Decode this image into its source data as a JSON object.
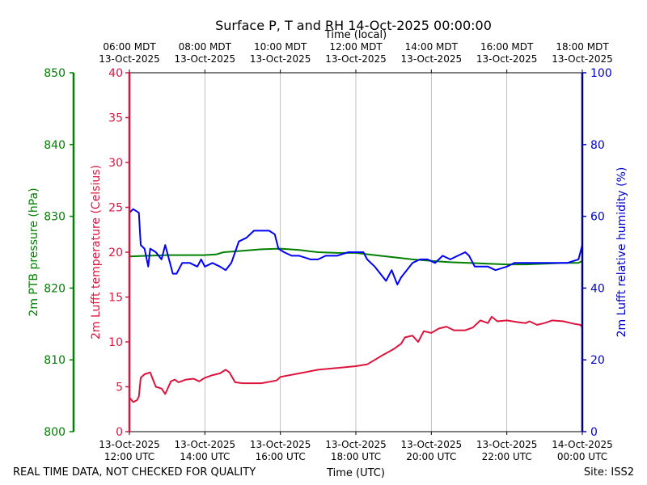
{
  "chart_data": {
    "type": "line",
    "title": "Surface P, T and RH 14-Oct-2025 00:00:00",
    "top_axis_label": "Time (local)",
    "xlabel": "Time (UTC)",
    "footer_left": "REAL TIME DATA, NOT CHECKED FOR QUALITY",
    "footer_right": "Site: ISS2",
    "x_unit": "hours UTC on 13-Oct-2025",
    "xlim": [
      12,
      24
    ],
    "bottom_ticks": [
      {
        "x": 12,
        "line1": "13-Oct-2025",
        "line2": "12:00 UTC"
      },
      {
        "x": 14,
        "line1": "13-Oct-2025",
        "line2": "14:00 UTC"
      },
      {
        "x": 16,
        "line1": "13-Oct-2025",
        "line2": "16:00 UTC"
      },
      {
        "x": 18,
        "line1": "13-Oct-2025",
        "line2": "18:00 UTC"
      },
      {
        "x": 20,
        "line1": "13-Oct-2025",
        "line2": "20:00 UTC"
      },
      {
        "x": 22,
        "line1": "13-Oct-2025",
        "line2": "22:00 UTC"
      },
      {
        "x": 24,
        "line1": "14-Oct-2025",
        "line2": "00:00 UTC"
      }
    ],
    "top_ticks": [
      {
        "x": 12,
        "line1": "06:00 MDT",
        "line2": "13-Oct-2025"
      },
      {
        "x": 14,
        "line1": "08:00 MDT",
        "line2": "13-Oct-2025"
      },
      {
        "x": 16,
        "line1": "10:00 MDT",
        "line2": "13-Oct-2025"
      },
      {
        "x": 18,
        "line1": "12:00 MDT",
        "line2": "13-Oct-2025"
      },
      {
        "x": 20,
        "line1": "14:00 MDT",
        "line2": "13-Oct-2025"
      },
      {
        "x": 22,
        "line1": "16:00 MDT",
        "line2": "13-Oct-2025"
      },
      {
        "x": 24,
        "line1": "18:00 MDT",
        "line2": "13-Oct-2025"
      }
    ],
    "grid_x": true,
    "axes": {
      "pressure": {
        "label": "2m PTB pressure (hPa)",
        "range": [
          800,
          850
        ],
        "ticks": [
          800,
          810,
          820,
          830,
          840,
          850
        ],
        "color": "#008000"
      },
      "temperature": {
        "label": "2m Lufft temperature (Celsius)",
        "range": [
          0,
          40
        ],
        "ticks": [
          0,
          5,
          10,
          15,
          20,
          25,
          30,
          35,
          40
        ],
        "color": "#dc143c"
      },
      "humidity": {
        "label": "2m Lufft relative humidity (%)",
        "range": [
          0,
          100
        ],
        "ticks": [
          0,
          20,
          40,
          60,
          80,
          100
        ],
        "color": "#0000cd"
      }
    },
    "series": [
      {
        "axis": "pressure",
        "color": "#008000",
        "points": [
          [
            12.0,
            824.4
          ],
          [
            12.5,
            824.5
          ],
          [
            13.0,
            824.6
          ],
          [
            13.5,
            824.6
          ],
          [
            14.0,
            824.6
          ],
          [
            14.3,
            824.7
          ],
          [
            14.5,
            825.0
          ],
          [
            15.0,
            825.2
          ],
          [
            15.5,
            825.4
          ],
          [
            16.0,
            825.5
          ],
          [
            16.5,
            825.3
          ],
          [
            17.0,
            825.0
          ],
          [
            17.5,
            824.9
          ],
          [
            18.0,
            824.9
          ],
          [
            18.5,
            824.6
          ],
          [
            19.0,
            824.3
          ],
          [
            19.5,
            824.0
          ],
          [
            20.0,
            823.8
          ],
          [
            20.5,
            823.6
          ],
          [
            21.0,
            823.5
          ],
          [
            21.5,
            823.4
          ],
          [
            22.0,
            823.3
          ],
          [
            22.5,
            823.3
          ],
          [
            23.0,
            823.4
          ],
          [
            23.5,
            823.5
          ],
          [
            23.9,
            823.5
          ],
          [
            24.0,
            823.8
          ]
        ]
      },
      {
        "axis": "temperature",
        "color": "#dc143c",
        "points": [
          [
            12.0,
            3.8
          ],
          [
            12.1,
            3.3
          ],
          [
            12.2,
            3.5
          ],
          [
            12.25,
            3.9
          ],
          [
            12.3,
            6.0
          ],
          [
            12.4,
            6.4
          ],
          [
            12.55,
            6.6
          ],
          [
            12.7,
            5.0
          ],
          [
            12.85,
            4.8
          ],
          [
            12.95,
            4.2
          ],
          [
            13.1,
            5.6
          ],
          [
            13.2,
            5.8
          ],
          [
            13.3,
            5.5
          ],
          [
            13.5,
            5.8
          ],
          [
            13.7,
            5.9
          ],
          [
            13.85,
            5.6
          ],
          [
            14.0,
            6.0
          ],
          [
            14.2,
            6.3
          ],
          [
            14.4,
            6.5
          ],
          [
            14.55,
            6.9
          ],
          [
            14.65,
            6.6
          ],
          [
            14.8,
            5.5
          ],
          [
            15.0,
            5.4
          ],
          [
            15.5,
            5.4
          ],
          [
            15.9,
            5.7
          ],
          [
            16.0,
            6.1
          ],
          [
            16.5,
            6.5
          ],
          [
            17.0,
            6.9
          ],
          [
            17.5,
            7.1
          ],
          [
            18.0,
            7.3
          ],
          [
            18.3,
            7.5
          ],
          [
            18.7,
            8.5
          ],
          [
            19.0,
            9.2
          ],
          [
            19.2,
            9.8
          ],
          [
            19.3,
            10.5
          ],
          [
            19.5,
            10.7
          ],
          [
            19.65,
            10.0
          ],
          [
            19.8,
            11.2
          ],
          [
            20.0,
            11.0
          ],
          [
            20.2,
            11.5
          ],
          [
            20.4,
            11.7
          ],
          [
            20.6,
            11.3
          ],
          [
            20.9,
            11.3
          ],
          [
            21.1,
            11.6
          ],
          [
            21.3,
            12.4
          ],
          [
            21.5,
            12.1
          ],
          [
            21.6,
            12.8
          ],
          [
            21.75,
            12.3
          ],
          [
            22.0,
            12.4
          ],
          [
            22.3,
            12.2
          ],
          [
            22.5,
            12.1
          ],
          [
            22.6,
            12.3
          ],
          [
            22.8,
            11.9
          ],
          [
            23.0,
            12.1
          ],
          [
            23.2,
            12.4
          ],
          [
            23.5,
            12.3
          ],
          [
            23.8,
            12.0
          ],
          [
            23.95,
            11.9
          ],
          [
            24.0,
            11.6
          ]
        ]
      },
      {
        "axis": "humidity",
        "color": "#0000ff",
        "points": [
          [
            12.0,
            61
          ],
          [
            12.1,
            62
          ],
          [
            12.25,
            61
          ],
          [
            12.3,
            52
          ],
          [
            12.4,
            51
          ],
          [
            12.5,
            46
          ],
          [
            12.55,
            51
          ],
          [
            12.7,
            50
          ],
          [
            12.85,
            48
          ],
          [
            12.95,
            52
          ],
          [
            13.05,
            48
          ],
          [
            13.15,
            44
          ],
          [
            13.25,
            44
          ],
          [
            13.4,
            47
          ],
          [
            13.6,
            47
          ],
          [
            13.8,
            46
          ],
          [
            13.9,
            48
          ],
          [
            14.0,
            46
          ],
          [
            14.2,
            47
          ],
          [
            14.4,
            46
          ],
          [
            14.55,
            45
          ],
          [
            14.7,
            47
          ],
          [
            14.8,
            50
          ],
          [
            14.9,
            53
          ],
          [
            15.1,
            54
          ],
          [
            15.3,
            56
          ],
          [
            15.5,
            56
          ],
          [
            15.7,
            56
          ],
          [
            15.85,
            55
          ],
          [
            15.95,
            51
          ],
          [
            16.1,
            50
          ],
          [
            16.3,
            49
          ],
          [
            16.5,
            49
          ],
          [
            16.8,
            48
          ],
          [
            17.0,
            48
          ],
          [
            17.2,
            49
          ],
          [
            17.5,
            49
          ],
          [
            17.8,
            50
          ],
          [
            18.0,
            50
          ],
          [
            18.2,
            50
          ],
          [
            18.3,
            48
          ],
          [
            18.5,
            46
          ],
          [
            18.65,
            44
          ],
          [
            18.8,
            42
          ],
          [
            18.95,
            45
          ],
          [
            19.1,
            41
          ],
          [
            19.2,
            43
          ],
          [
            19.35,
            45
          ],
          [
            19.5,
            47
          ],
          [
            19.7,
            48
          ],
          [
            19.9,
            48
          ],
          [
            20.1,
            47
          ],
          [
            20.3,
            49
          ],
          [
            20.5,
            48
          ],
          [
            20.7,
            49
          ],
          [
            20.9,
            50
          ],
          [
            21.0,
            49
          ],
          [
            21.15,
            46
          ],
          [
            21.3,
            46
          ],
          [
            21.5,
            46
          ],
          [
            21.7,
            45
          ],
          [
            22.0,
            46
          ],
          [
            22.2,
            47
          ],
          [
            22.5,
            47
          ],
          [
            22.8,
            47
          ],
          [
            23.0,
            47
          ],
          [
            23.3,
            47
          ],
          [
            23.6,
            47
          ],
          [
            23.9,
            48
          ],
          [
            24.0,
            52
          ]
        ]
      }
    ]
  }
}
